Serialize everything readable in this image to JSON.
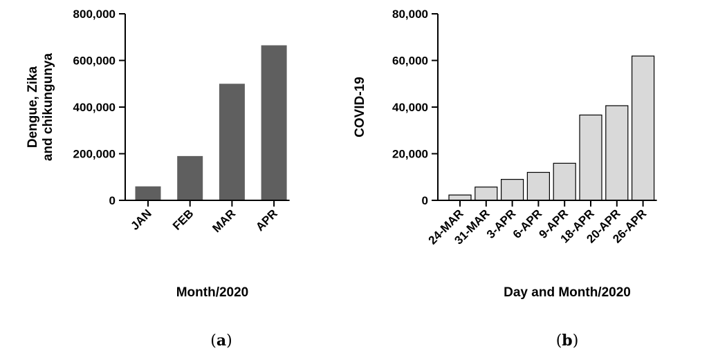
{
  "chart_data": [
    {
      "type": "bar",
      "panel_label": "a",
      "categories": [
        "JAN",
        "FEB",
        "MAR",
        "APR"
      ],
      "values": [
        60000,
        190000,
        500000,
        665000
      ],
      "ylim": [
        0,
        800000
      ],
      "yticks": [
        0,
        200000,
        400000,
        600000,
        800000
      ],
      "ytick_labels": [
        "0",
        "200,000",
        "400,000",
        "600,000",
        "800,000"
      ],
      "ylabel": [
        "Dengue, Zika",
        "and chikungunya"
      ],
      "xlabel": "Month/2020",
      "bar_color": "#5f5f5f",
      "grid": false
    },
    {
      "type": "bar",
      "panel_label": "b",
      "categories": [
        "24-MAR",
        "31-MAR",
        "3-APR",
        "6-APR",
        "9-APR",
        "18-APR",
        "20-APR",
        "26-APR"
      ],
      "values": [
        2300,
        5700,
        9000,
        12000,
        15900,
        36600,
        40600,
        61900
      ],
      "ylim": [
        0,
        80000
      ],
      "yticks": [
        0,
        20000,
        40000,
        60000,
        80000
      ],
      "ytick_labels": [
        "0",
        "20,000",
        "40,000",
        "60,000",
        "80,000"
      ],
      "ylabel": [
        "COVID-19"
      ],
      "xlabel": "Day and Month/2020",
      "bar_color": "#d9d9d9",
      "bar_edge": "#000000",
      "grid": false
    }
  ]
}
